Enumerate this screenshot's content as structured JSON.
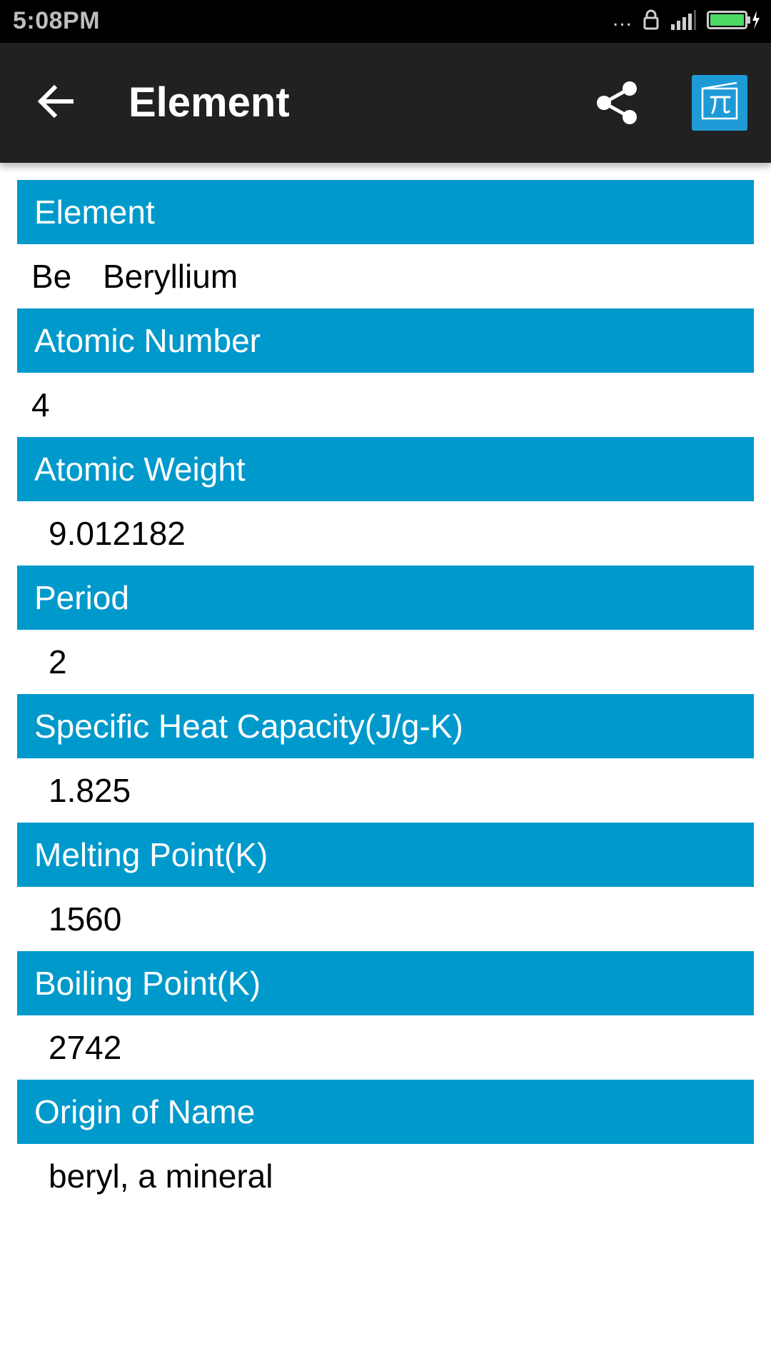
{
  "status_bar": {
    "time": "5:08PM",
    "dots": "...",
    "icons": [
      "lock-icon",
      "signal-icon",
      "battery-charging-icon"
    ],
    "battery_color": "#4cd964"
  },
  "app_bar": {
    "title": "Element",
    "back_icon": "arrow-left-icon",
    "share_icon": "share-icon",
    "calculator_icon": "pi-icon",
    "background": "#212121",
    "accent": "#1e9bd7"
  },
  "sections": {
    "element": {
      "header": "Element",
      "symbol": "Be",
      "name": "Beryllium"
    },
    "atomic_number": {
      "header": "Atomic Number",
      "value": "4"
    },
    "atomic_weight": {
      "header": "Atomic Weight",
      "value": "9.012182"
    },
    "period": {
      "header": "Period",
      "value": "2"
    },
    "specific_heat": {
      "header": "Specific Heat Capacity(J/g-K)",
      "value": "1.825"
    },
    "melting_point": {
      "header": "Melting Point(K)",
      "value": "1560"
    },
    "boiling_point": {
      "header": "Boiling Point(K)",
      "value": "2742"
    },
    "origin_of_name": {
      "header": "Origin of Name",
      "value": "beryl, a mineral"
    }
  },
  "colors": {
    "header_blue": "#0099cc",
    "value_text": "#000000",
    "header_text": "#ffffff"
  }
}
